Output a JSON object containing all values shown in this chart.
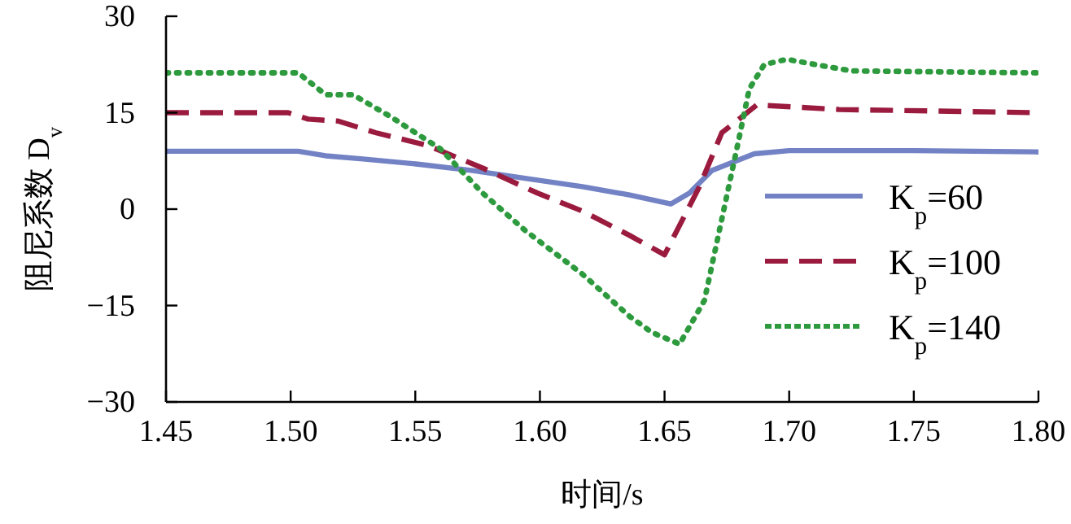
{
  "chart_data": {
    "type": "line",
    "xlabel": "时间/s",
    "ylabel": "阻尼系数 D$_{v}$",
    "xlim": [
      1.45,
      1.8
    ],
    "ylim": [
      -30,
      30
    ],
    "xticks": [
      {
        "value": 1.45,
        "label": "1.45"
      },
      {
        "value": 1.5,
        "label": "1.50"
      },
      {
        "value": 1.55,
        "label": "1.55"
      },
      {
        "value": 1.6,
        "label": "1.60"
      },
      {
        "value": 1.65,
        "label": "1.65"
      },
      {
        "value": 1.7,
        "label": "1.70"
      },
      {
        "value": 1.75,
        "label": "1.75"
      },
      {
        "value": 1.8,
        "label": "1.80"
      }
    ],
    "yticks": [
      {
        "value": -30,
        "label": "−30"
      },
      {
        "value": -15,
        "label": "−15"
      },
      0,
      15,
      30
    ],
    "grid": false,
    "legend": "right",
    "marker": "none",
    "series": [
      {
        "name": "K$_{p}$=60",
        "color": "#7282c4",
        "line_style": "solid",
        "x": [
          1.45,
          1.503,
          1.514,
          1.529,
          1.551,
          1.573,
          1.594,
          1.617,
          1.636,
          1.6525,
          1.66,
          1.669,
          1.686,
          1.7,
          1.75,
          1.8
        ],
        "values": [
          9.0,
          9.0,
          8.3,
          7.8,
          7.0,
          6.0,
          4.8,
          3.5,
          2.2,
          0.8,
          2.5,
          6.0,
          8.6,
          9.1,
          9.1,
          8.9
        ]
      },
      {
        "name": "K$_{p}$=100",
        "color": "#9b1b3f",
        "line_style": "dashed",
        "x": [
          1.45,
          1.499,
          1.507,
          1.519,
          1.534,
          1.555,
          1.577,
          1.599,
          1.617,
          1.636,
          1.65,
          1.664,
          1.673,
          1.687,
          1.72,
          1.8
        ],
        "values": [
          15.0,
          15.0,
          14.0,
          13.7,
          11.9,
          9.9,
          6.4,
          2.5,
          -0.3,
          -4.1,
          -7.1,
          3.5,
          11.9,
          16.2,
          15.5,
          15.0
        ]
      },
      {
        "name": "K$_{p}$=140",
        "color": "#2e9a3e",
        "line_style": "dotted",
        "x": [
          1.45,
          1.503,
          1.514,
          1.525,
          1.54,
          1.56,
          1.577,
          1.594,
          1.617,
          1.636,
          1.645,
          1.656,
          1.666,
          1.673,
          1.679,
          1.684,
          1.69,
          1.699,
          1.725,
          1.8
        ],
        "values": [
          21.2,
          21.2,
          17.8,
          17.8,
          14.4,
          9.4,
          2.5,
          -3.3,
          -10.1,
          -16.7,
          -19.2,
          -21.0,
          -14.2,
          -1.5,
          9.4,
          18.7,
          22.5,
          23.3,
          21.5,
          21.2
        ]
      }
    ]
  }
}
